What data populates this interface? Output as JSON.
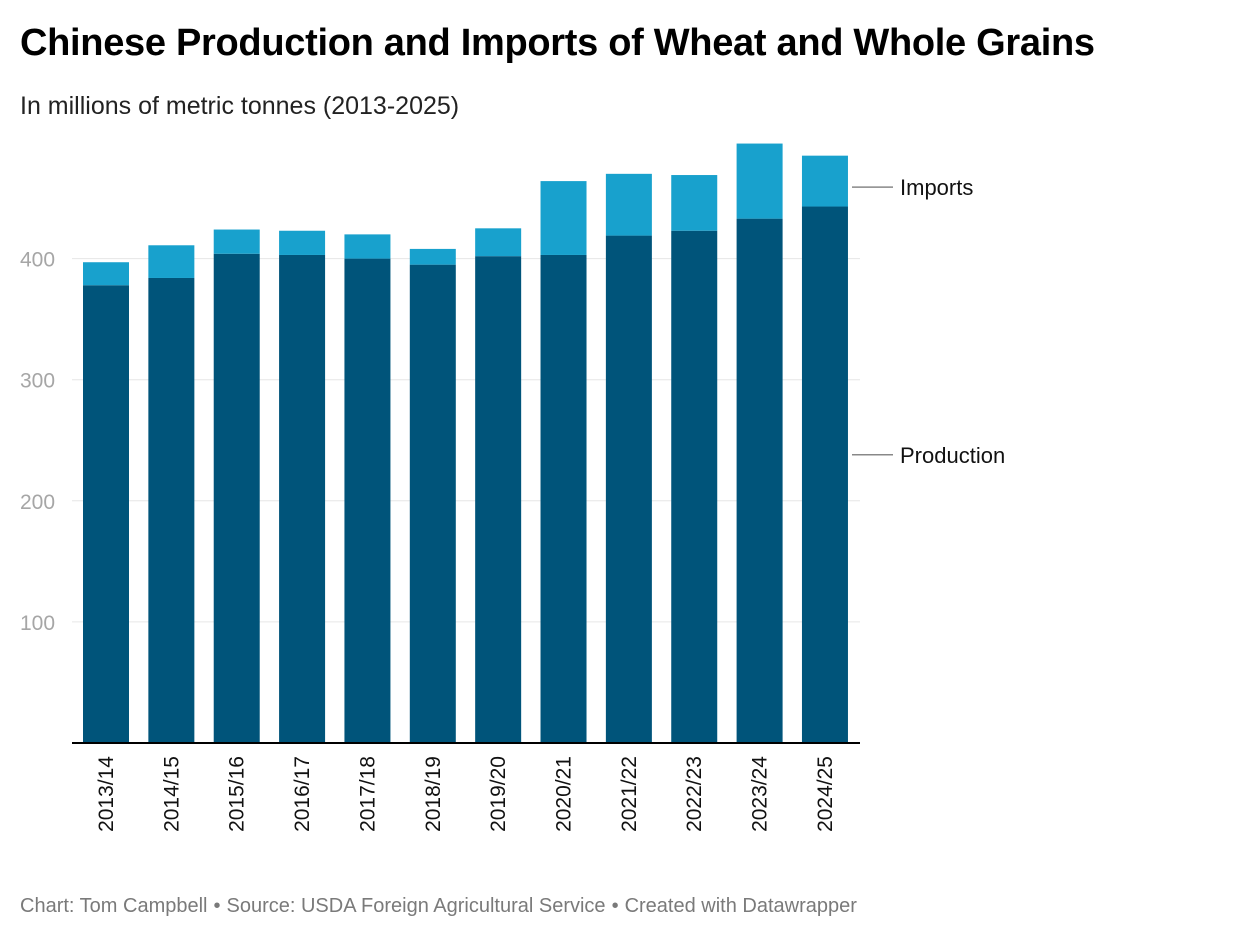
{
  "title": "Chinese Production and Imports of Wheat and Whole Grains",
  "subtitle": "In millions of metric tonnes (2013-2025)",
  "footer": {
    "credit": "Chart: Tom Campbell",
    "separator": "•",
    "source": "Source: USDA Foreign Agricultural Service",
    "created": "Created with Datawrapper"
  },
  "colors": {
    "production": "#00547a",
    "imports": "#18a1cd",
    "grid": "#e6e6e6",
    "tick_text": "#a6a6a6"
  },
  "chart_data": {
    "type": "bar",
    "stacked": true,
    "categories": [
      "2013/14",
      "2014/15",
      "2015/16",
      "2016/17",
      "2017/18",
      "2018/19",
      "2019/20",
      "2020/21",
      "2021/22",
      "2022/23",
      "2023/24",
      "2024/25"
    ],
    "series": [
      {
        "name": "Production",
        "values": [
          378,
          384,
          404,
          403,
          400,
          395,
          402,
          403,
          419,
          423,
          433,
          443
        ]
      },
      {
        "name": "Imports",
        "values": [
          19,
          27,
          20,
          20,
          20,
          13,
          23,
          61,
          51,
          46,
          62,
          42
        ]
      }
    ],
    "yticks": [
      100,
      200,
      300,
      400
    ],
    "ylim": [
      0,
      500
    ],
    "grid": true,
    "legend": "direct labels right"
  }
}
